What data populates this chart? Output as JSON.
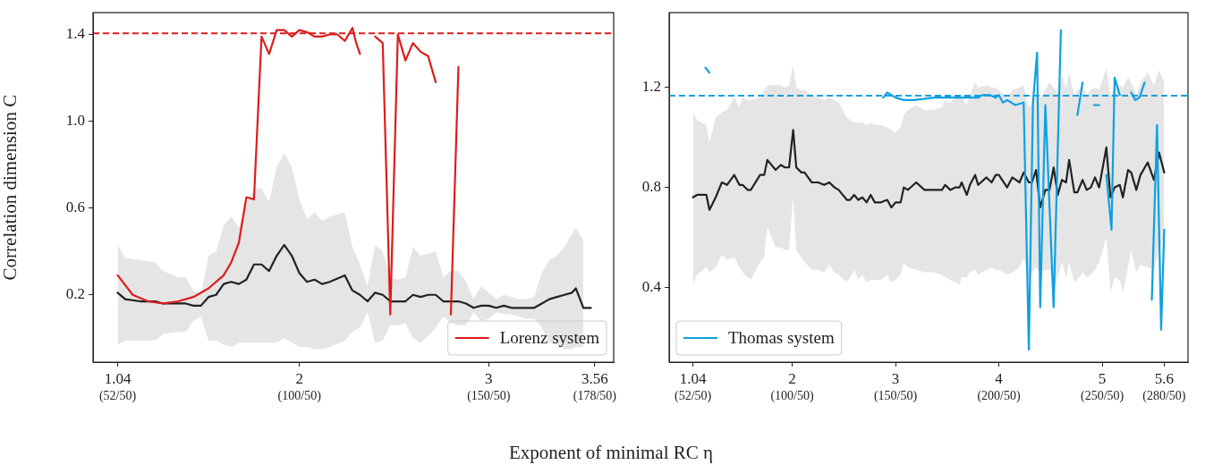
{
  "chart_data": [
    {
      "type": "line",
      "ylabel": "Correlation dimension C",
      "xlabel": "Exponent of minimal RC η",
      "legend": "bottom right",
      "xlim": [
        0.91,
        3.66
      ],
      "ylim": [
        -0.11,
        1.5
      ],
      "xticks": [
        1.04,
        2,
        3,
        3.56
      ],
      "annotations": [
        "(52/50)",
        "(100/50)",
        "(150/50)",
        "(178/50)"
      ],
      "yticks": [
        0.2,
        0.6,
        {
          "value": 1.0,
          "label": "1.0"
        },
        1.4
      ],
      "ref_lines": [
        {
          "axis": "y",
          "value": 1.405,
          "color": "#dd1c1c",
          "line_style": "dashed"
        }
      ],
      "series": [
        {
          "color": "#222222",
          "x": [
            1.04,
            1.08,
            1.16,
            1.24,
            1.28,
            1.36,
            1.4,
            1.44,
            1.48,
            1.52,
            1.56,
            1.6,
            1.64,
            1.68,
            1.72,
            1.76,
            1.8,
            1.84,
            1.88,
            1.92,
            1.96,
            2.0,
            2.04,
            2.08,
            2.12,
            2.16,
            2.24,
            2.28,
            2.32,
            2.36,
            2.4,
            2.44,
            2.48,
            2.52,
            2.56,
            2.6,
            2.64,
            2.68,
            2.72,
            2.76,
            2.8,
            2.84,
            2.88,
            2.92,
            2.96,
            3.0,
            3.04,
            3.08,
            3.12,
            3.16,
            3.2,
            3.24,
            3.28,
            3.32,
            3.36,
            3.4,
            3.44,
            3.46,
            3.5,
            3.54
          ],
          "values": [
            0.21,
            0.18,
            0.17,
            0.17,
            0.16,
            0.16,
            0.16,
            0.15,
            0.15,
            0.19,
            0.2,
            0.25,
            0.26,
            0.25,
            0.27,
            0.34,
            0.34,
            0.31,
            0.38,
            0.43,
            0.38,
            0.3,
            0.26,
            0.27,
            0.25,
            0.26,
            0.29,
            0.22,
            0.2,
            0.17,
            0.21,
            0.2,
            0.17,
            0.17,
            0.17,
            0.2,
            0.19,
            0.2,
            0.2,
            0.17,
            0.17,
            0.17,
            0.16,
            0.14,
            0.15,
            0.15,
            0.14,
            0.15,
            0.14,
            0.14,
            0.14,
            0.14,
            0.16,
            0.18,
            0.19,
            0.2,
            0.21,
            0.23,
            0.14,
            0.14
          ],
          "upper": [
            0.43,
            0.37,
            0.36,
            0.35,
            0.31,
            0.28,
            0.28,
            0.22,
            0.2,
            0.38,
            0.4,
            0.52,
            0.56,
            0.51,
            0.62,
            0.69,
            0.69,
            0.63,
            0.79,
            0.85,
            0.79,
            0.64,
            0.55,
            0.58,
            0.54,
            0.56,
            0.58,
            0.42,
            0.34,
            0.24,
            0.43,
            0.4,
            0.28,
            0.27,
            0.28,
            0.42,
            0.38,
            0.39,
            0.4,
            0.28,
            0.31,
            0.31,
            0.26,
            0.18,
            0.24,
            0.21,
            0.18,
            0.2,
            0.19,
            0.18,
            0.18,
            0.19,
            0.3,
            0.36,
            0.38,
            0.42,
            0.48,
            0.51,
            0.45,
            null
          ],
          "lower": [
            -0.03,
            -0.01,
            -0.01,
            -0.01,
            0.02,
            0.03,
            0.03,
            0.08,
            0.1,
            -0.01,
            -0.01,
            -0.03,
            -0.04,
            -0.02,
            -0.02,
            -0.02,
            -0.02,
            -0.02,
            -0.02,
            0.0,
            -0.02,
            -0.04,
            -0.04,
            -0.05,
            -0.05,
            -0.04,
            -0.01,
            0.03,
            0.05,
            0.12,
            -0.02,
            -0.01,
            0.06,
            0.06,
            0.07,
            0.0,
            -0.02,
            0.01,
            0.05,
            0.1,
            0.07,
            0.06,
            0.06,
            0.12,
            0.08,
            0.09,
            0.12,
            0.11,
            0.11,
            0.1,
            0.09,
            0.09,
            0.05,
            -0.02,
            -0.03,
            -0.05,
            -0.05,
            -0.04,
            -0.04,
            null
          ]
        },
        {
          "name": "Lorenz system",
          "color": "#dd1c1c",
          "x": [
            1.04,
            1.12,
            1.2,
            1.28,
            1.36,
            1.44,
            1.52,
            1.6,
            1.64,
            1.68,
            1.72,
            1.76,
            1.8,
            1.84,
            1.88,
            1.92,
            1.96,
            2.0,
            2.04,
            2.08,
            2.12,
            2.16,
            2.2,
            2.24,
            2.28,
            2.3,
            2.32,
            2.36,
            2.4,
            2.44,
            2.48,
            2.52,
            2.56,
            2.6,
            2.64,
            2.68,
            2.72,
            2.76,
            2.8,
            2.84
          ],
          "values": [
            0.29,
            0.2,
            0.17,
            0.16,
            0.17,
            0.19,
            0.23,
            0.29,
            0.35,
            0.44,
            0.65,
            0.64,
            1.39,
            1.31,
            1.42,
            1.42,
            1.39,
            1.42,
            1.41,
            1.39,
            1.39,
            1.4,
            1.4,
            1.37,
            1.43,
            1.36,
            1.31,
            null,
            1.39,
            1.36,
            0.11,
            1.4,
            1.28,
            1.36,
            1.32,
            1.3,
            1.18,
            null,
            0.11,
            1.25
          ]
        }
      ]
    },
    {
      "type": "line",
      "legend": "bottom left",
      "xlim": [
        0.81,
        5.83
      ],
      "ylim": [
        0.1,
        1.5
      ],
      "xticks": [
        1.04,
        2,
        3,
        4,
        5,
        5.6
      ],
      "annotations": [
        "(52/50)",
        "(100/50)",
        "(150/50)",
        "(200/50)",
        "(250/50)",
        "(280/50)"
      ],
      "yticks": [
        0.4,
        0.8,
        1.2
      ],
      "ref_lines": [
        {
          "axis": "y",
          "value": 1.168,
          "color": "#0ea0e0",
          "line_style": "dashed"
        }
      ],
      "series": [
        {
          "color": "#222222",
          "x": [
            1.04,
            1.08,
            1.17,
            1.2,
            1.26,
            1.32,
            1.37,
            1.44,
            1.49,
            1.52,
            1.57,
            1.6,
            1.69,
            1.73,
            1.76,
            1.84,
            1.89,
            1.93,
            1.97,
            2.01,
            2.04,
            2.09,
            2.12,
            2.19,
            2.25,
            2.31,
            2.36,
            2.41,
            2.45,
            2.53,
            2.56,
            2.6,
            2.64,
            2.68,
            2.72,
            2.76,
            2.8,
            2.86,
            2.92,
            2.96,
            3.0,
            3.05,
            3.08,
            3.12,
            3.2,
            3.28,
            3.36,
            3.45,
            3.48,
            3.53,
            3.58,
            3.62,
            3.64,
            3.69,
            3.72,
            3.77,
            3.8,
            3.88,
            3.93,
            3.97,
            4.0,
            4.08,
            4.13,
            4.2,
            4.24,
            4.29,
            4.32,
            4.36,
            4.4,
            4.45,
            4.49,
            4.53,
            4.57,
            4.61,
            4.65,
            4.68,
            4.73,
            4.76,
            4.81,
            4.85,
            4.89,
            4.93,
            4.97,
            5.04,
            5.08,
            5.12,
            5.17,
            5.2,
            5.25,
            5.28,
            5.33,
            5.37,
            5.44,
            5.5,
            5.55,
            5.6
          ],
          "values": [
            0.76,
            0.77,
            0.77,
            0.71,
            0.76,
            0.82,
            0.81,
            0.85,
            0.81,
            0.81,
            0.79,
            0.79,
            0.85,
            0.85,
            0.91,
            0.87,
            0.89,
            0.88,
            0.88,
            1.03,
            0.88,
            0.86,
            0.86,
            0.82,
            0.82,
            0.81,
            0.82,
            0.8,
            0.79,
            0.75,
            0.75,
            0.77,
            0.75,
            0.76,
            0.74,
            0.77,
            0.74,
            0.74,
            0.75,
            0.72,
            0.74,
            0.74,
            0.8,
            0.79,
            0.82,
            0.79,
            0.79,
            0.79,
            0.81,
            0.79,
            0.8,
            0.8,
            0.82,
            0.77,
            0.81,
            0.85,
            0.81,
            0.84,
            0.82,
            0.85,
            0.85,
            0.8,
            0.84,
            0.82,
            0.86,
            0.82,
            0.82,
            0.87,
            0.72,
            0.79,
            0.79,
            0.88,
            0.77,
            0.83,
            0.82,
            0.91,
            0.78,
            0.78,
            0.83,
            0.79,
            0.8,
            0.84,
            0.8,
            0.96,
            0.76,
            0.8,
            0.81,
            0.76,
            0.87,
            0.86,
            0.79,
            0.85,
            0.9,
            0.83,
            0.94,
            0.86
          ],
          "upper": [
            1.1,
            1.07,
            1.05,
            0.98,
            1.08,
            1.1,
            1.11,
            1.16,
            1.12,
            1.16,
            1.15,
            1.15,
            1.16,
            1.19,
            1.21,
            1.21,
            1.21,
            1.2,
            1.21,
            1.29,
            1.2,
            1.19,
            1.19,
            1.17,
            1.16,
            1.15,
            1.16,
            1.15,
            1.14,
            1.08,
            1.07,
            1.06,
            1.06,
            1.06,
            1.05,
            1.06,
            1.05,
            1.05,
            1.04,
            1.03,
            1.02,
            1.04,
            1.09,
            1.11,
            1.13,
            1.11,
            1.11,
            1.12,
            1.15,
            1.14,
            1.16,
            1.17,
            1.16,
            1.13,
            1.17,
            1.22,
            1.2,
            1.21,
            1.2,
            1.2,
            1.19,
            1.16,
            1.19,
            1.2,
            1.21,
            1.12,
            1.14,
            1.17,
            1.16,
            1.19,
            1.22,
            1.2,
            1.18,
            1.25,
            1.2,
            1.26,
            1.17,
            1.19,
            1.21,
            1.17,
            1.19,
            1.2,
            1.19,
            1.28,
            1.17,
            1.2,
            1.21,
            1.2,
            1.24,
            1.22,
            1.17,
            1.22,
            1.26,
            1.21,
            1.27,
            1.22
          ],
          "lower": [
            0.41,
            0.45,
            0.48,
            0.46,
            0.48,
            0.53,
            0.51,
            0.52,
            0.48,
            0.46,
            0.44,
            0.43,
            0.5,
            0.52,
            0.64,
            0.56,
            0.56,
            0.55,
            0.55,
            0.76,
            0.55,
            0.52,
            0.5,
            0.47,
            0.47,
            0.46,
            0.49,
            0.46,
            0.45,
            0.42,
            0.44,
            0.47,
            0.43,
            0.45,
            0.42,
            0.43,
            0.43,
            0.43,
            0.45,
            0.42,
            0.43,
            0.45,
            0.5,
            0.48,
            0.47,
            0.46,
            0.46,
            0.45,
            0.44,
            0.43,
            0.42,
            0.41,
            0.44,
            0.44,
            0.46,
            0.47,
            0.45,
            0.47,
            0.48,
            0.47,
            0.47,
            0.45,
            0.46,
            0.48,
            0.52,
            0.42,
            0.46,
            0.48,
            0.46,
            0.47,
            0.47,
            0.39,
            0.44,
            0.5,
            0.44,
            0.5,
            0.42,
            0.43,
            0.46,
            0.44,
            0.45,
            0.47,
            0.5,
            0.6,
            0.38,
            0.44,
            0.43,
            0.38,
            0.48,
            0.55,
            0.46,
            0.49,
            0.48,
            0.47,
            0.55,
            0.61
          ]
        },
        {
          "name": "Thomas system",
          "color": "#0ea0e0",
          "x": [
            1.16,
            1.2,
            1.5,
            2.88,
            2.92,
            3.0,
            3.08,
            3.18,
            3.38,
            3.54,
            3.8,
            3.84,
            3.91,
            3.97,
            4.0,
            4.04,
            4.08,
            4.16,
            4.24,
            4.29,
            4.33,
            4.37,
            4.4,
            4.45,
            4.53,
            4.6,
            4.68,
            4.76,
            4.81,
            4.85,
            4.92,
            4.97,
            5.0,
            5.04,
            5.09,
            5.12,
            5.17,
            5.22,
            5.28,
            5.32,
            5.36,
            5.41,
            5.45,
            5.48,
            5.53,
            5.57,
            5.6
          ],
          "values": [
            1.28,
            1.26,
            null,
            1.16,
            1.18,
            1.16,
            1.15,
            1.15,
            1.16,
            1.16,
            1.16,
            1.17,
            1.17,
            1.16,
            1.17,
            1.14,
            1.15,
            1.13,
            1.14,
            0.15,
            1.14,
            1.34,
            0.32,
            1.13,
            0.32,
            1.43,
            null,
            1.09,
            1.22,
            null,
            1.13,
            1.13,
            null,
            0.85,
            0.63,
            1.24,
            1.17,
            null,
            1.18,
            1.15,
            1.16,
            1.22,
            null,
            0.35,
            1.05,
            0.23,
            0.63
          ]
        }
      ]
    }
  ]
}
